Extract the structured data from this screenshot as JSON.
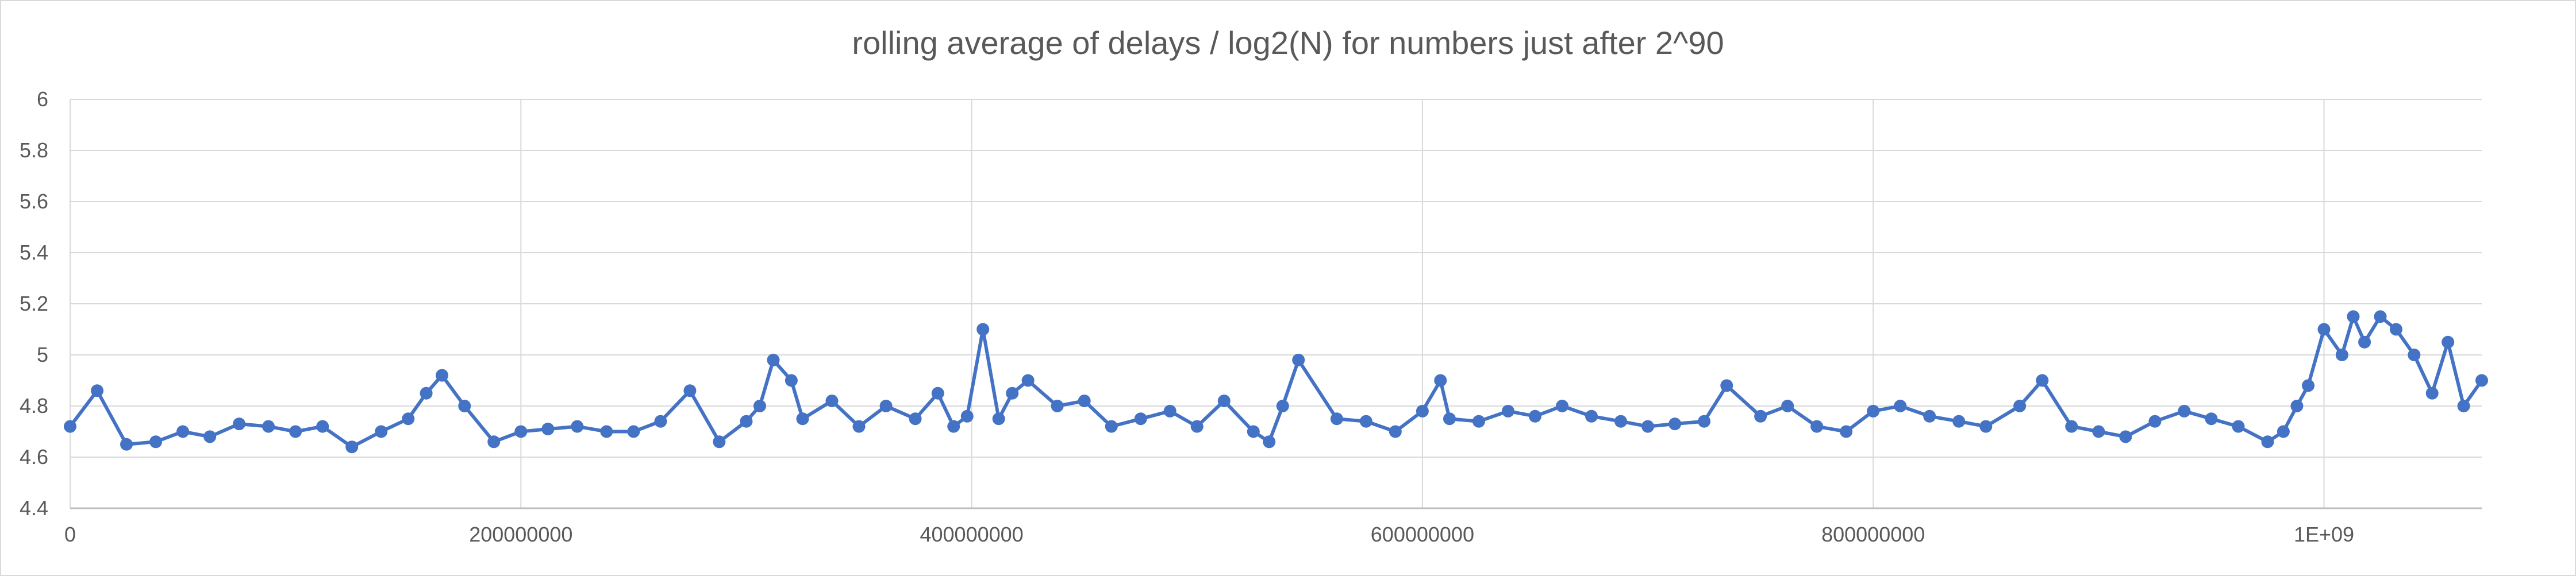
{
  "chart_data": {
    "type": "line",
    "title": "rolling average of delays / log2(N) for numbers just after 2^90",
    "xlabel": "",
    "ylabel": "",
    "xlim": [
      0,
      1070000000
    ],
    "ylim": [
      4.4,
      6
    ],
    "x_ticks": [
      0,
      200000000,
      400000000,
      600000000,
      800000000,
      1000000000
    ],
    "x_tick_labels": [
      "0",
      "200000000",
      "400000000",
      "600000000",
      "800000000",
      "1E+09"
    ],
    "y_ticks": [
      4.4,
      4.6,
      4.8,
      5,
      5.2,
      5.4,
      5.6,
      5.8,
      6
    ],
    "y_tick_labels": [
      "4.4",
      "4.6",
      "4.8",
      "5",
      "5.2",
      "5.4",
      "5.6",
      "5.8",
      "6"
    ],
    "grid": true,
    "legend": "none",
    "marker": "circle",
    "color": "#4472C4",
    "series": [
      {
        "x": [
          0,
          12000000,
          25000000,
          38000000,
          50000000,
          62000000,
          75000000,
          88000000,
          100000000,
          112000000,
          125000000,
          138000000,
          150000000,
          158000000,
          165000000,
          175000000,
          188000000,
          200000000,
          212000000,
          225000000,
          238000000,
          250000000,
          262000000,
          275000000,
          288000000,
          300000000,
          306000000,
          312000000,
          320000000,
          325000000,
          338000000,
          350000000,
          362000000,
          375000000,
          385000000,
          392000000,
          398000000,
          405000000,
          412000000,
          418000000,
          425000000,
          438000000,
          450000000,
          462000000,
          475000000,
          488000000,
          500000000,
          512000000,
          525000000,
          532000000,
          538000000,
          545000000,
          562000000,
          575000000,
          588000000,
          600000000,
          608000000,
          612000000,
          625000000,
          638000000,
          650000000,
          662000000,
          675000000,
          688000000,
          700000000,
          712000000,
          725000000,
          735000000,
          750000000,
          762000000,
          775000000,
          788000000,
          800000000,
          812000000,
          825000000,
          838000000,
          850000000,
          865000000,
          875000000,
          888000000,
          900000000,
          912000000,
          925000000,
          938000000,
          950000000,
          962000000,
          975000000,
          982000000,
          988000000,
          993000000,
          1000000000,
          1008000000,
          1013000000,
          1018000000,
          1025000000,
          1032000000,
          1040000000,
          1048000000,
          1055000000,
          1062000000,
          1070000000
        ],
        "y": [
          4.72,
          4.86,
          4.65,
          4.66,
          4.7,
          4.68,
          4.73,
          4.72,
          4.7,
          4.72,
          4.64,
          4.7,
          4.75,
          4.85,
          4.92,
          4.8,
          4.66,
          4.7,
          4.71,
          4.72,
          4.7,
          4.7,
          4.74,
          4.86,
          4.66,
          4.74,
          4.8,
          4.98,
          4.9,
          4.75,
          4.82,
          4.72,
          4.8,
          4.75,
          4.85,
          4.72,
          4.76,
          5.1,
          4.75,
          4.85,
          4.9,
          4.8,
          4.82,
          4.72,
          4.75,
          4.78,
          4.72,
          4.82,
          4.7,
          4.66,
          4.8,
          4.98,
          4.75,
          4.74,
          4.7,
          4.78,
          4.9,
          4.75,
          4.74,
          4.78,
          4.76,
          4.8,
          4.76,
          4.74,
          4.72,
          4.73,
          4.74,
          4.88,
          4.76,
          4.8,
          4.72,
          4.7,
          4.78,
          4.8,
          4.76,
          4.74,
          4.72,
          4.8,
          4.9,
          4.72,
          4.7,
          4.68,
          4.74,
          4.78,
          4.75,
          4.72,
          4.66,
          4.7,
          4.8,
          4.88,
          5.1,
          5.0,
          5.15,
          5.05,
          5.15,
          5.1,
          5.0,
          4.85,
          5.05,
          4.8,
          4.9
        ]
      }
    ]
  }
}
